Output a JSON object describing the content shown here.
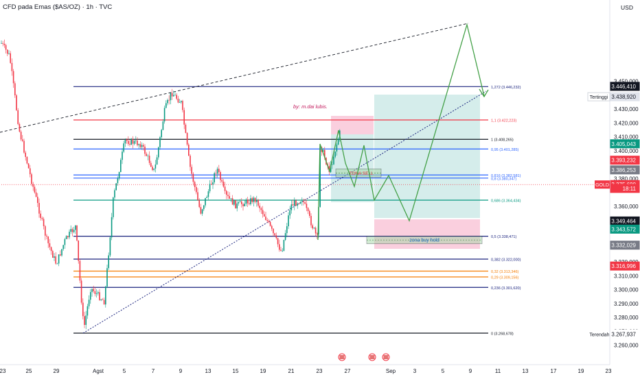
{
  "header": {
    "title": "CFD pada Emas ($AS/OZ) · 1h · TVC",
    "currency": "USD"
  },
  "watermark": "by: m.dai lubis.",
  "colors": {
    "up": "#089981",
    "down": "#f23645",
    "fib_black": "#131722",
    "fib_red": "#f23645",
    "fib_blue": "#2962ff",
    "fib_navy": "#1a237e",
    "fib_green": "#089981",
    "fib_orange": "#f57c00",
    "projection": "#43a047",
    "target_fill": "#b2dfdb",
    "stop_fill": "#f8bbd0"
  },
  "chart_data": {
    "type": "candlestick",
    "symbol": "GOLD",
    "timeframe": "1h",
    "x_ticks": [
      "23",
      "25",
      "29",
      "Agst",
      "5",
      "7",
      "9",
      "13",
      "15",
      "19",
      "21",
      "23",
      "27",
      "Sep",
      "3",
      "5",
      "9",
      "11",
      "13",
      "17",
      "19",
      "23"
    ],
    "y_ticks": [
      "3.450,000",
      "3.430,000",
      "3.420,000",
      "3.410,000",
      "3.400,000",
      "3.380,000",
      "3.360,000",
      "3.320,000",
      "3.310,000",
      "3.300,000",
      "3.290,000",
      "3.280,000",
      "3.270,000",
      "3.260,000"
    ],
    "ylim": [
      3256,
      3452
    ],
    "fib_levels": [
      {
        "label": "1,272 (3.446,232)",
        "value": 3446.232,
        "color": "#1a237e"
      },
      {
        "label": "1,1 (3.422,223)",
        "value": 3422.223,
        "color": "#f23645"
      },
      {
        "label": "1 (3.408,265)",
        "value": 3408.265,
        "color": "#131722"
      },
      {
        "label": "0,95 (3.401,285)",
        "value": 3401.285,
        "color": "#2962ff"
      },
      {
        "label": "0,816 (3.382,581)",
        "value": 3382.581,
        "color": "#2962ff"
      },
      {
        "label": "0,8 (3.380,347)",
        "value": 3380.347,
        "color": "#2962ff"
      },
      {
        "label": "0,686 (3.364,434)",
        "value": 3364.434,
        "color": "#089981"
      },
      {
        "label": "0,5 (3.338,471)",
        "value": 3338.471,
        "color": "#1a237e"
      },
      {
        "label": "0,382 (3.322,000)",
        "value": 3322.0,
        "color": "#1a237e"
      },
      {
        "label": "0,32 (3.313,346)",
        "value": 3313.346,
        "color": "#f57c00"
      },
      {
        "label": "0,29 (3.309,156)",
        "value": 3309.156,
        "color": "#f57c00"
      },
      {
        "label": "0,236 (3.301,620)",
        "value": 3301.62,
        "color": "#1a237e"
      },
      {
        "label": "0 (3.268,678)",
        "value": 3268.678,
        "color": "#131722"
      }
    ],
    "price_tags": [
      {
        "text": "3.446,410",
        "value": 3446.41,
        "bg": "#131722",
        "fg": "#ffffff"
      },
      {
        "text": "3.438,920",
        "value": 3438.92,
        "bg": "#e0e3eb",
        "fg": "#131722"
      },
      {
        "text": "3.405,043",
        "value": 3405.043,
        "bg": "#089981",
        "fg": "#ffffff"
      },
      {
        "text": "3.393,232",
        "value": 3393.232,
        "bg": "#f23645",
        "fg": "#ffffff"
      },
      {
        "text": "3.386,253",
        "value": 3386.253,
        "bg": "#787b86",
        "fg": "#ffffff"
      },
      {
        "text": "3.375,690",
        "value": 3375.69,
        "bg": "#f23645",
        "fg": "#ffffff"
      },
      {
        "text": "18:11",
        "value": 3372.9,
        "bg": "#f23645",
        "fg": "#ffffff"
      },
      {
        "text": "3.349,464",
        "value": 3349.464,
        "bg": "#131722",
        "fg": "#ffffff"
      },
      {
        "text": "3.343,572",
        "value": 3343.572,
        "bg": "#089981",
        "fg": "#ffffff"
      },
      {
        "text": "3.332,029",
        "value": 3332.029,
        "bg": "#787b86",
        "fg": "#ffffff"
      },
      {
        "text": "3.316,996",
        "value": 3316.996,
        "bg": "#f23645",
        "fg": "#ffffff"
      },
      {
        "text": "3.267,937",
        "value": 3267.937,
        "bg": "#ffffff",
        "fg": "#131722"
      }
    ],
    "side_labels": {
      "high": "Tertinggi",
      "low": "Terendah",
      "symbol": "GOLD"
    },
    "zones": {
      "sell": {
        "label": "ZONA SELL",
        "top": 3387,
        "bottom": 3381
      },
      "buy": {
        "label": "zona buy hold",
        "top": 3338.5,
        "bottom": 3333
      }
    },
    "current_price": 3375.69
  }
}
